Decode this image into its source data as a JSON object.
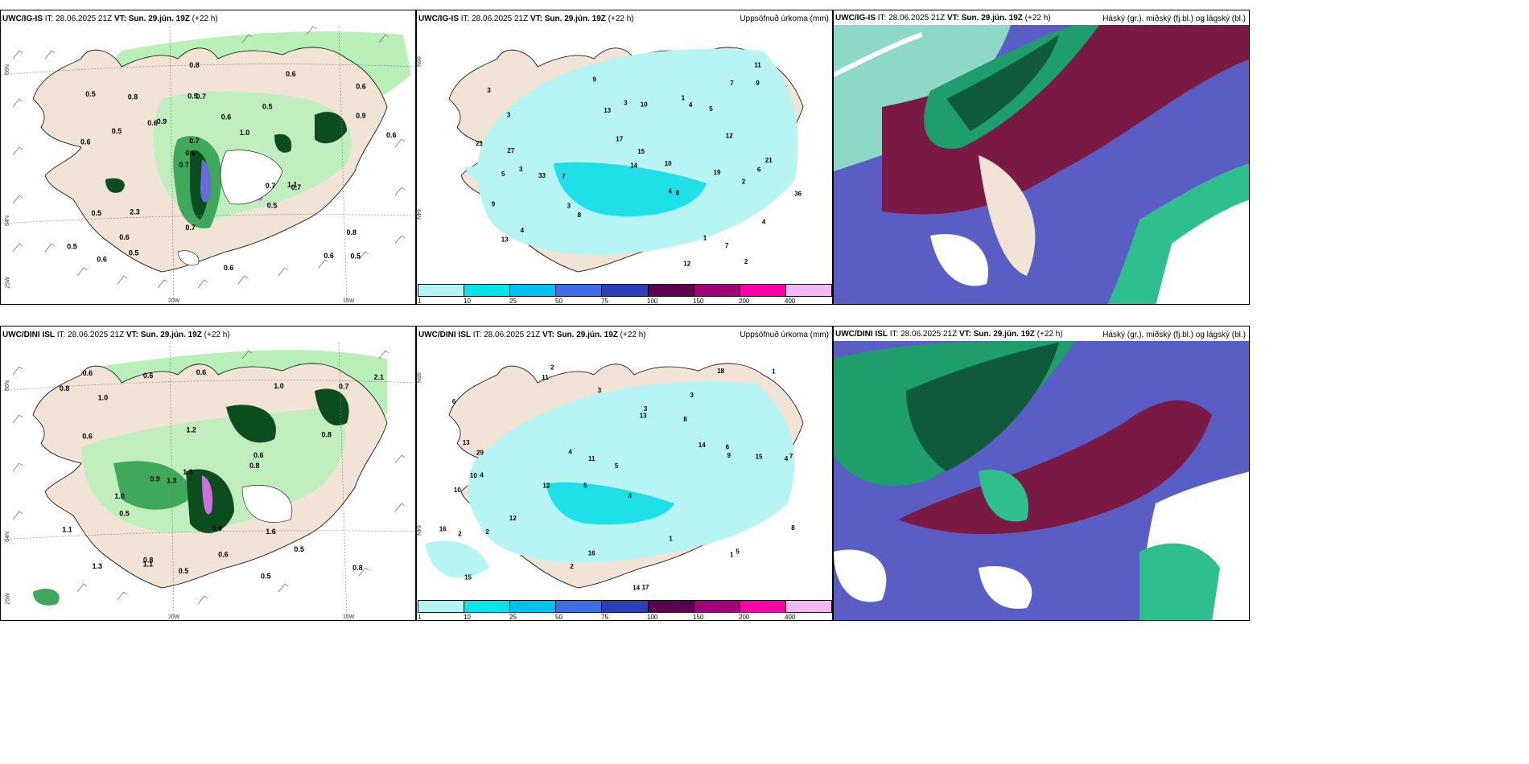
{
  "rows": [
    {
      "model": "UWC/IG-IS",
      "panels": [
        {
          "id": "wind",
          "title_model": "UWC/IG-IS",
          "it_label": "IT:",
          "it_value": "28.06.2025 21Z",
          "vt_label": "VT:",
          "vt_value": "Sun. 29.jún. 19Z",
          "lead": "(+22 h)",
          "right_title": ""
        },
        {
          "id": "precip",
          "title_model": "UWC/IG-IS",
          "it_label": "IT:",
          "it_value": "28.06.2025 21Z",
          "vt_label": "VT:",
          "vt_value": "Sun. 29.jún. 19Z",
          "lead": "(+22 h)",
          "right_title": "Uppsöfnuð úrkoma (mm)"
        },
        {
          "id": "cloud",
          "title_model": "UWC/IG-IS",
          "it_label": "IT:",
          "it_value": "28.06.2025 21Z",
          "vt_label": "VT:",
          "vt_value": "Sun. 29.jún. 19Z",
          "lead": "(+22 h)",
          "right_title": "Háský (gr.), miðský (fj.bl.) og lágský (bl.)"
        }
      ],
      "wind_values": [
        "0.5",
        "0.6",
        "0.6",
        "0.7",
        "0.5",
        "0.6",
        "0.5",
        "0.6",
        "0.5",
        "0.9",
        "0.5",
        "0.6",
        "0.7",
        "1.0",
        "0.7",
        "0.5",
        "0.8",
        "0.6",
        "0.7",
        "0.9",
        "0.6",
        "0.7",
        "0.7",
        "0.8",
        "0.6",
        "2.3",
        "0.6",
        "0.8",
        "1.1",
        "0.6",
        "0.6",
        "0.5",
        "0.5",
        "0.5"
      ],
      "precip_values": [
        "2",
        "3",
        "4",
        "3",
        "4",
        "3",
        "4",
        "7",
        "5",
        "3",
        "4",
        "7",
        "8",
        "9",
        "10",
        "9",
        "19",
        "15",
        "21",
        "13",
        "11",
        "10",
        "12",
        "36",
        "21",
        "27",
        "33",
        "14",
        "17",
        "9",
        "8",
        "5",
        "3",
        "1",
        "13",
        "2",
        "6",
        "1",
        "7",
        "12"
      ]
    },
    {
      "model": "UWC/DINI ISL",
      "panels": [
        {
          "id": "wind",
          "title_model": "UWC/DINI ISL",
          "it_label": "IT:",
          "it_value": "28.06.2025 21Z",
          "vt_label": "VT:",
          "vt_value": "Sun. 29.jún. 19Z",
          "lead": "(+22 h)",
          "right_title": ""
        },
        {
          "id": "precip",
          "title_model": "UWC/DINI ISL",
          "it_label": "IT:",
          "it_value": "28.06.2025 21Z",
          "vt_label": "VT:",
          "vt_value": "Sun. 29.jún. 19Z",
          "lead": "(+22 h)",
          "right_title": "Uppsöfnuð úrkoma (mm)"
        },
        {
          "id": "cloud",
          "title_model": "UWC/DINI ISL",
          "it_label": "IT:",
          "it_value": "28.06.2025 21Z",
          "vt_label": "VT:",
          "vt_value": "Sun. 29.jún. 19Z",
          "lead": "(+22 h)",
          "right_title": "Háský (gr.), miðský (fj.bl.) og lágský (bl.)"
        }
      ],
      "wind_values": [
        "0.5",
        "0.5",
        "0.8",
        "0.5",
        "0.6",
        "1.0",
        "0.9",
        "0.8",
        "0.6",
        "1.2",
        "0.7",
        "0.6",
        "1.3",
        "0.9",
        "1.0",
        "0.8",
        "0.6",
        "1.1",
        "1.3",
        "0.8",
        "1.6",
        "2.1",
        "0.6",
        "1.3",
        "0.8",
        "1.0",
        "1.1",
        "0.5",
        "0.6"
      ],
      "precip_values": [
        "2",
        "3",
        "4",
        "5",
        "3",
        "4",
        "6",
        "8",
        "10",
        "13",
        "5",
        "15",
        "11",
        "12",
        "14",
        "17",
        "16",
        "18",
        "14",
        "12",
        "29",
        "10",
        "7",
        "15",
        "16",
        "13",
        "11",
        "9",
        "5",
        "2",
        "1",
        "3",
        "2",
        "4",
        "1",
        "8",
        "6",
        "2",
        "1",
        "3"
      ]
    }
  ],
  "axes": {
    "lat_66": "66N",
    "lat_64": "64N",
    "lon_20": "20W",
    "lon_15": "15W",
    "lon_25": "25W"
  },
  "colorbar": {
    "labels": [
      "1",
      "10",
      "25",
      "50",
      "75",
      "100",
      "150",
      "200",
      "400"
    ],
    "colors": [
      "#b3f5f5",
      "#00e5ec",
      "#00c2ec",
      "#3c6fe8",
      "#2a3fb8",
      "#5e0050",
      "#a0007a",
      "#ff00aa",
      "#f5b8f5"
    ]
  },
  "colors": {
    "land": "#f1e4d6",
    "precip_light": "#b7f4f4",
    "precip_mid": "#1fe0e8",
    "green_light": "#b8f0b8",
    "green_mid": "#3fa85a",
    "green_dark": "#0b4d1f",
    "cloud_high": "#1e9e6a",
    "cloud_mid": "#7a1a44",
    "cloud_low": "#5a5ec4"
  }
}
